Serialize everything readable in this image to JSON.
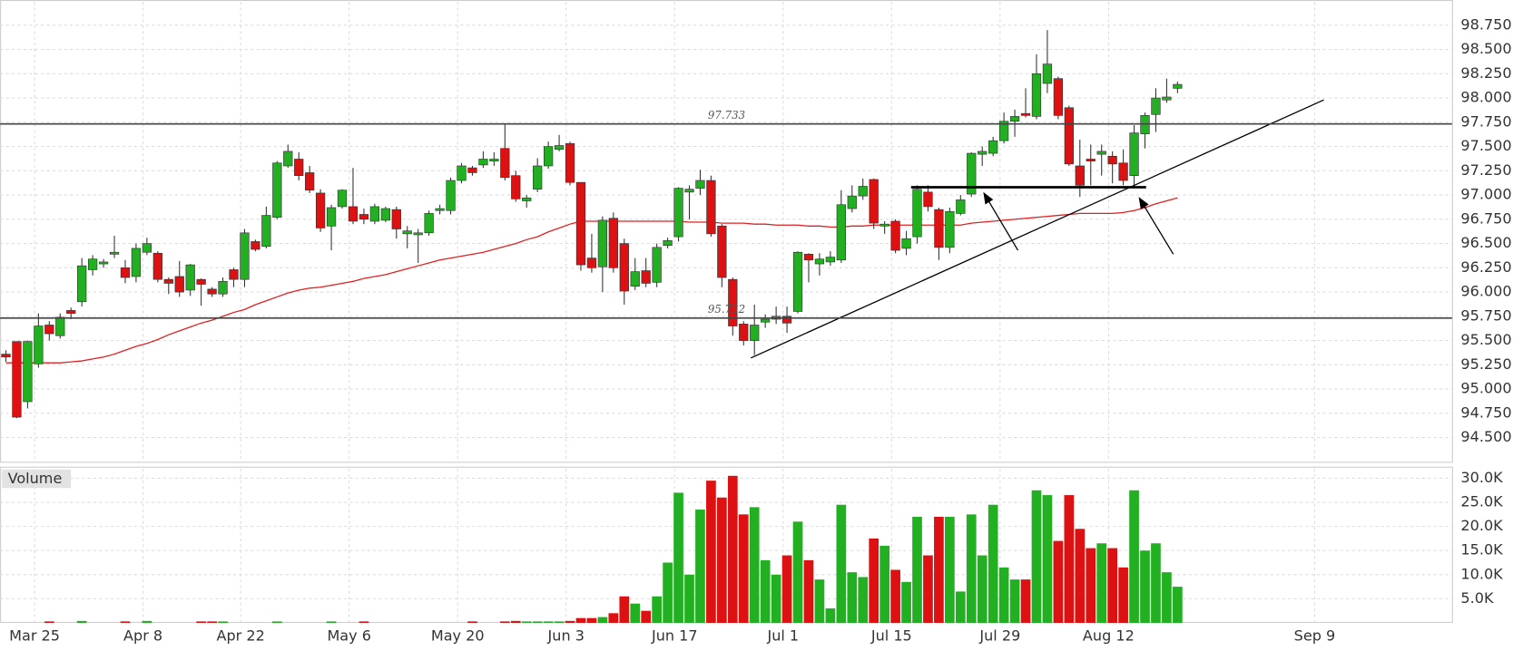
{
  "chart_data": {
    "type": "candlestick",
    "categories": [
      null,
      null,
      null,
      "Mar 25",
      null,
      null,
      null,
      null,
      null,
      null,
      null,
      null,
      null,
      "Apr 8",
      null,
      null,
      null,
      null,
      null,
      null,
      null,
      null,
      "Apr 22",
      null,
      null,
      null,
      null,
      null,
      null,
      null,
      null,
      null,
      "May 6",
      null,
      null,
      null,
      null,
      null,
      null,
      null,
      null,
      null,
      "May 20",
      null,
      null,
      null,
      null,
      null,
      null,
      null,
      null,
      null,
      "Jun 3",
      null,
      null,
      null,
      null,
      null,
      null,
      null,
      null,
      null,
      "Jun 17",
      null,
      null,
      null,
      null,
      null,
      null,
      null,
      null,
      null,
      "Jul 1",
      null,
      null,
      null,
      null,
      null,
      null,
      null,
      null,
      null,
      "Jul 15",
      null,
      null,
      null,
      null,
      null,
      null,
      null,
      null,
      null,
      "Jul 29",
      null,
      null,
      null,
      null,
      null,
      null,
      null,
      null,
      null,
      "Aug 12",
      null,
      null,
      null,
      null,
      null,
      null,
      null,
      null,
      null,
      null,
      null,
      null,
      null,
      null,
      null,
      null,
      null,
      null,
      "Sep 9"
    ],
    "open": [
      95.36,
      95.49,
      94.87,
      95.26,
      95.66,
      95.55,
      95.81,
      95.9,
      96.23,
      96.29,
      96.39,
      96.25,
      96.16,
      96.41,
      96.4,
      96.13,
      96.16,
      96.02,
      96.13,
      96.03,
      95.98,
      96.23,
      96.13,
      96.52,
      96.47,
      96.77,
      97.3,
      97.37,
      97.23,
      97.02,
      96.68,
      96.88,
      96.88,
      96.8,
      96.73,
      96.74,
      96.85,
      96.6,
      96.59,
      96.61,
      96.84,
      96.84,
      97.15,
      97.28,
      97.31,
      97.35,
      97.48,
      97.2,
      96.94,
      97.06,
      97.3,
      97.47,
      97.53,
      97.13,
      96.35,
      96.26,
      96.76,
      96.5,
      96.06,
      96.22,
      96.1,
      96.48,
      96.57,
      97.03,
      97.07,
      97.15,
      96.68,
      96.13,
      95.67,
      95.5,
      95.69,
      95.72,
      95.75,
      95.8,
      96.39,
      96.29,
      96.31,
      96.33,
      96.86,
      96.99,
      97.16,
      96.68,
      96.73,
      96.45,
      96.57,
      97.03,
      96.85,
      96.46,
      96.81,
      97.01,
      97.42,
      97.43,
      97.56,
      97.76,
      97.84,
      97.81,
      98.15,
      98.2,
      97.9,
      97.3,
      97.37,
      97.42,
      97.4,
      97.33,
      97.2,
      97.63,
      97.83,
      97.98,
      98.1,
      null,
      null,
      null,
      null,
      null,
      null,
      null,
      null,
      null,
      null,
      null,
      null,
      null
    ],
    "high": [
      95.4,
      95.49,
      95.5,
      95.78,
      95.7,
      95.78,
      95.84,
      96.35,
      96.38,
      96.34,
      96.58,
      96.33,
      96.5,
      96.56,
      96.42,
      96.15,
      96.32,
      96.29,
      96.14,
      96.05,
      96.15,
      96.25,
      96.65,
      96.54,
      96.88,
      97.35,
      97.52,
      97.44,
      97.3,
      97.06,
      96.9,
      97.06,
      97.28,
      96.86,
      96.91,
      96.88,
      96.88,
      96.68,
      96.65,
      96.84,
      96.9,
      97.18,
      97.33,
      97.3,
      97.45,
      97.44,
      97.73,
      97.25,
      97.0,
      97.38,
      97.55,
      97.62,
      97.55,
      97.13,
      96.6,
      96.78,
      96.82,
      96.55,
      96.35,
      96.35,
      96.5,
      96.56,
      97.08,
      97.1,
      97.26,
      97.2,
      96.7,
      96.15,
      95.7,
      95.87,
      95.77,
      95.85,
      95.85,
      96.42,
      96.4,
      96.4,
      96.42,
      97.05,
      97.1,
      97.17,
      97.17,
      96.73,
      96.75,
      96.63,
      97.1,
      97.1,
      96.87,
      96.87,
      97.0,
      97.44,
      97.5,
      97.6,
      97.85,
      97.88,
      98.1,
      98.45,
      98.7,
      98.22,
      97.92,
      97.57,
      97.52,
      97.52,
      97.45,
      97.47,
      97.72,
      97.85,
      98.1,
      98.2,
      98.17,
      null,
      null,
      null,
      null,
      null,
      null,
      null,
      null,
      null,
      null,
      null,
      null,
      null
    ],
    "low": [
      95.28,
      94.7,
      94.8,
      95.22,
      95.5,
      95.52,
      95.72,
      95.85,
      96.17,
      96.25,
      96.35,
      96.09,
      96.1,
      96.38,
      96.1,
      95.98,
      95.95,
      95.96,
      95.86,
      95.95,
      95.95,
      96.05,
      96.05,
      96.42,
      96.45,
      96.75,
      97.28,
      97.15,
      97.02,
      96.62,
      96.43,
      96.86,
      96.7,
      96.7,
      96.7,
      96.72,
      96.55,
      96.45,
      96.3,
      96.58,
      96.8,
      96.8,
      97.12,
      97.2,
      97.28,
      97.3,
      97.15,
      96.93,
      96.87,
      97.03,
      97.27,
      97.45,
      97.1,
      96.22,
      96.2,
      96.0,
      96.2,
      95.87,
      96.02,
      96.05,
      96.05,
      96.45,
      96.52,
      96.75,
      97.0,
      96.57,
      96.05,
      95.55,
      95.45,
      95.35,
      95.63,
      95.67,
      95.58,
      95.78,
      96.1,
      96.17,
      96.27,
      96.3,
      96.82,
      96.95,
      96.65,
      96.6,
      96.4,
      96.38,
      96.5,
      96.83,
      96.33,
      96.4,
      96.79,
      96.98,
      97.3,
      97.4,
      97.53,
      97.6,
      97.8,
      97.78,
      98.05,
      97.78,
      97.3,
      96.98,
      97.1,
      97.2,
      97.12,
      97.1,
      97.1,
      97.48,
      97.65,
      97.95,
      98.05,
      null,
      null,
      null,
      null,
      null,
      null,
      null,
      null,
      null,
      null,
      null,
      null,
      null
    ],
    "close": [
      95.33,
      94.71,
      95.49,
      95.65,
      95.57,
      95.74,
      95.78,
      96.27,
      96.34,
      96.31,
      96.41,
      96.15,
      96.45,
      96.5,
      96.13,
      96.09,
      96.0,
      96.28,
      96.08,
      95.98,
      96.11,
      96.13,
      96.61,
      96.44,
      96.79,
      97.33,
      97.45,
      97.2,
      97.05,
      96.66,
      96.87,
      97.05,
      96.73,
      96.75,
      96.88,
      96.86,
      96.65,
      96.63,
      96.61,
      96.81,
      96.86,
      97.15,
      97.3,
      97.23,
      97.37,
      97.37,
      97.18,
      96.96,
      96.97,
      97.3,
      97.5,
      97.51,
      97.13,
      96.28,
      96.25,
      96.74,
      96.25,
      96.01,
      96.21,
      96.09,
      96.46,
      96.53,
      97.07,
      97.06,
      97.15,
      96.6,
      96.15,
      95.65,
      95.5,
      95.66,
      95.72,
      95.75,
      95.68,
      96.41,
      96.33,
      96.34,
      96.36,
      96.9,
      96.99,
      97.09,
      96.71,
      96.7,
      96.43,
      96.55,
      97.06,
      96.88,
      96.46,
      96.83,
      96.95,
      97.43,
      97.45,
      97.56,
      97.76,
      97.81,
      97.82,
      98.25,
      98.35,
      97.82,
      97.32,
      97.1,
      97.35,
      97.45,
      97.32,
      97.15,
      97.64,
      97.82,
      98.0,
      98.01,
      98.14,
      null,
      null,
      null,
      null,
      null,
      null,
      null,
      null,
      null,
      null,
      null,
      null,
      null
    ],
    "volume": [
      0,
      0,
      0,
      0,
      300,
      0,
      0,
      400,
      0,
      0,
      0,
      300,
      0,
      400,
      0,
      0,
      0,
      0,
      300,
      300,
      300,
      0,
      0,
      0,
      0,
      300,
      0,
      0,
      0,
      0,
      300,
      0,
      0,
      300,
      0,
      0,
      0,
      0,
      0,
      0,
      0,
      0,
      0,
      300,
      0,
      0,
      300,
      400,
      300,
      300,
      300,
      300,
      400,
      1000,
      1000,
      1200,
      2000,
      5500,
      4000,
      2500,
      5500,
      12500,
      27000,
      10000,
      23500,
      29500,
      26000,
      30500,
      22500,
      24000,
      13000,
      10000,
      14000,
      21000,
      13000,
      9000,
      3000,
      24500,
      10500,
      9500,
      17500,
      16000,
      11000,
      8500,
      22000,
      14000,
      22000,
      22000,
      6500,
      22500,
      14000,
      24500,
      11500,
      9000,
      9000,
      27500,
      26500,
      17000,
      26500,
      19500,
      15500,
      16500,
      15500,
      11500,
      27500,
      15000,
      16500,
      10500,
      7500,
      null,
      null,
      null,
      null,
      null,
      null,
      null,
      null,
      null,
      null,
      null,
      null,
      null
    ],
    "moving_average": [
      95.27,
      95.27,
      95.27,
      95.27,
      95.27,
      95.27,
      95.28,
      95.29,
      95.31,
      95.33,
      95.36,
      95.4,
      95.44,
      95.47,
      95.51,
      95.56,
      95.6,
      95.64,
      95.68,
      95.71,
      95.75,
      95.79,
      95.82,
      95.87,
      95.91,
      95.95,
      95.99,
      96.02,
      96.04,
      96.05,
      96.07,
      96.09,
      96.11,
      96.14,
      96.16,
      96.18,
      96.21,
      96.24,
      96.27,
      96.3,
      96.33,
      96.35,
      96.37,
      96.39,
      96.41,
      96.44,
      96.47,
      96.5,
      96.54,
      96.57,
      96.62,
      96.66,
      96.7,
      96.73,
      96.73,
      96.73,
      96.73,
      96.73,
      96.73,
      96.73,
      96.73,
      96.73,
      96.73,
      96.72,
      96.72,
      96.72,
      96.71,
      96.71,
      96.71,
      96.7,
      96.7,
      96.69,
      96.69,
      96.69,
      96.68,
      96.68,
      96.67,
      96.67,
      96.68,
      96.68,
      96.69,
      96.69,
      96.69,
      96.69,
      96.69,
      96.69,
      96.69,
      96.69,
      96.69,
      96.71,
      96.72,
      96.73,
      96.74,
      96.75,
      96.76,
      96.77,
      96.78,
      96.79,
      96.8,
      96.81,
      96.81,
      96.81,
      96.81,
      96.82,
      96.84,
      96.87,
      96.91,
      96.94,
      96.97,
      null,
      null,
      null,
      null,
      null,
      null,
      null,
      null,
      null,
      null,
      null,
      null,
      null
    ],
    "moving_average_color": "#e02020",
    "up_color": "#22b022",
    "down_color": "#dd1111",
    "reference_lines": [
      97.733,
      95.732
    ],
    "ylim": [
      94.25,
      98.99
    ],
    "yticks": [
      {
        "value": 94.5,
        "label": "94.500"
      },
      {
        "value": 94.75,
        "label": "94.750"
      },
      {
        "value": 95,
        "label": "95.000"
      },
      {
        "value": 95.25,
        "label": "95.250"
      },
      {
        "value": 95.5,
        "label": "95.500"
      },
      {
        "value": 95.75,
        "label": "95.750"
      },
      {
        "value": 96,
        "label": "96.000"
      },
      {
        "value": 96.25,
        "label": "96.250"
      },
      {
        "value": 96.5,
        "label": "96.500"
      },
      {
        "value": 96.75,
        "label": "96.750"
      },
      {
        "value": 97,
        "label": "97.000"
      },
      {
        "value": 97.25,
        "label": "97.250"
      },
      {
        "value": 97.5,
        "label": "97.500"
      },
      {
        "value": 97.75,
        "label": "97.750"
      },
      {
        "value": 98,
        "label": "98.000"
      },
      {
        "value": 98.25,
        "label": "98.250"
      },
      {
        "value": 98.5,
        "label": "98.500"
      },
      {
        "value": 98.75,
        "label": "98.750"
      }
    ],
    "volume_label": "Volume",
    "volume_ylim": [
      0,
      32000
    ],
    "volume_yticks": [
      {
        "value": 5000,
        "label": "5.0K"
      },
      {
        "value": 10000,
        "label": "10.0K"
      },
      {
        "value": 15000,
        "label": "15.0K"
      },
      {
        "value": 20000,
        "label": "20.0K"
      },
      {
        "value": 25000,
        "label": "25.0K"
      },
      {
        "value": 30000,
        "label": "30.0K"
      }
    ],
    "grid": true
  }
}
